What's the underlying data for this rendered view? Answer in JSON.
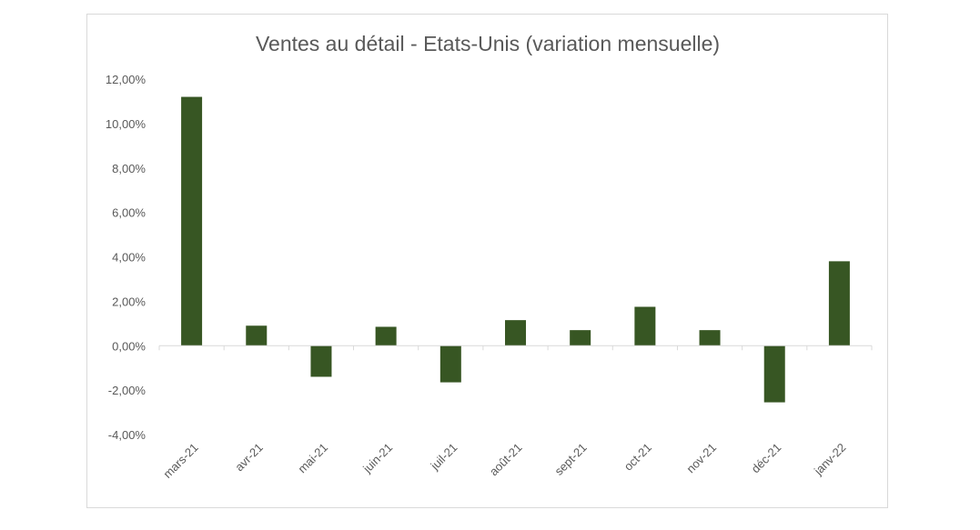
{
  "chart_data": {
    "type": "bar",
    "title": "Ventes au détail - Etats-Unis (variation mensuelle)",
    "xlabel": "",
    "ylabel": "",
    "categories": [
      "mars-21",
      "avr-21",
      "mai-21",
      "juin-21",
      "juil-21",
      "août-21",
      "sept-21",
      "oct-21",
      "nov-21",
      "déc-21",
      "janv-22"
    ],
    "values": [
      11.2,
      0.9,
      -1.4,
      0.85,
      -1.65,
      1.15,
      0.7,
      1.75,
      0.7,
      -2.55,
      3.8
    ],
    "ylim": [
      -4,
      12
    ],
    "yticks": [
      -4,
      -2,
      0,
      2,
      4,
      6,
      8,
      10,
      12
    ],
    "ytick_labels": [
      "-4,00%",
      "-2,00%",
      "0,00%",
      "2,00%",
      "4,00%",
      "6,00%",
      "8,00%",
      "10,00%",
      "12,00%"
    ],
    "bar_color": "#375623",
    "grid": false,
    "legend": "none"
  }
}
